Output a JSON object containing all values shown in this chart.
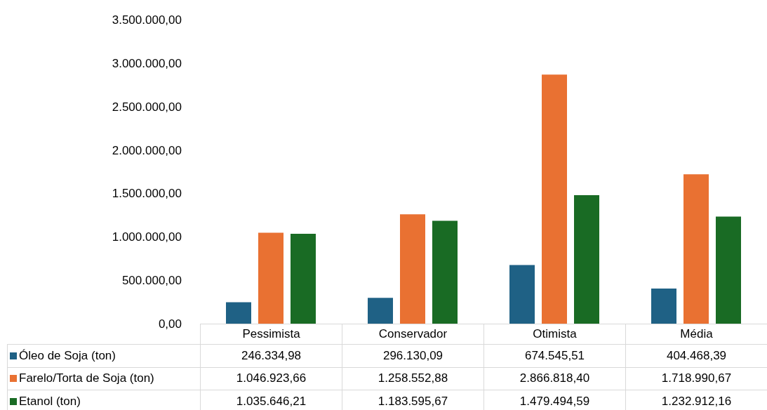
{
  "chart_data": {
    "type": "bar",
    "categories": [
      "Pessimista",
      "Conservador",
      "Otimista",
      "Média"
    ],
    "series": [
      {
        "name": "Óleo de Soja (ton)",
        "color": "#1f6185",
        "values": [
          246334.98,
          296130.09,
          674545.51,
          404468.39
        ],
        "value_labels": [
          "246.334,98",
          "296.130,09",
          "674.545,51",
          "404.468,39"
        ]
      },
      {
        "name": "Farelo/Torta de Soja (ton)",
        "color": "#e97132",
        "values": [
          1046923.66,
          1258552.88,
          2866818.4,
          1718990.67
        ],
        "value_labels": [
          "1.046.923,66",
          "1.258.552,88",
          "2.866.818,40",
          "1.718.990,67"
        ]
      },
      {
        "name": "Etanol (ton)",
        "color": "#196b24",
        "values": [
          1035646.21,
          1183595.67,
          1479494.59,
          1232912.16
        ],
        "value_labels": [
          "1.035.646,21",
          "1.183.595,67",
          "1.479.494,59",
          "1.232.912,16"
        ]
      }
    ],
    "ylim": [
      0,
      3500000
    ],
    "yticks": [
      {
        "value": 0,
        "label": "0,00"
      },
      {
        "value": 500000,
        "label": "500.000,00"
      },
      {
        "value": 1000000,
        "label": "1.000.000,00"
      },
      {
        "value": 1500000,
        "label": "1.500.000,00"
      },
      {
        "value": 2000000,
        "label": "2.000.000,00"
      },
      {
        "value": 2500000,
        "label": "2.500.000,00"
      },
      {
        "value": 3000000,
        "label": "3.000.000,00"
      },
      {
        "value": 3500000,
        "label": "3.500.000,00"
      }
    ],
    "legend": "bottom",
    "grid": false
  }
}
